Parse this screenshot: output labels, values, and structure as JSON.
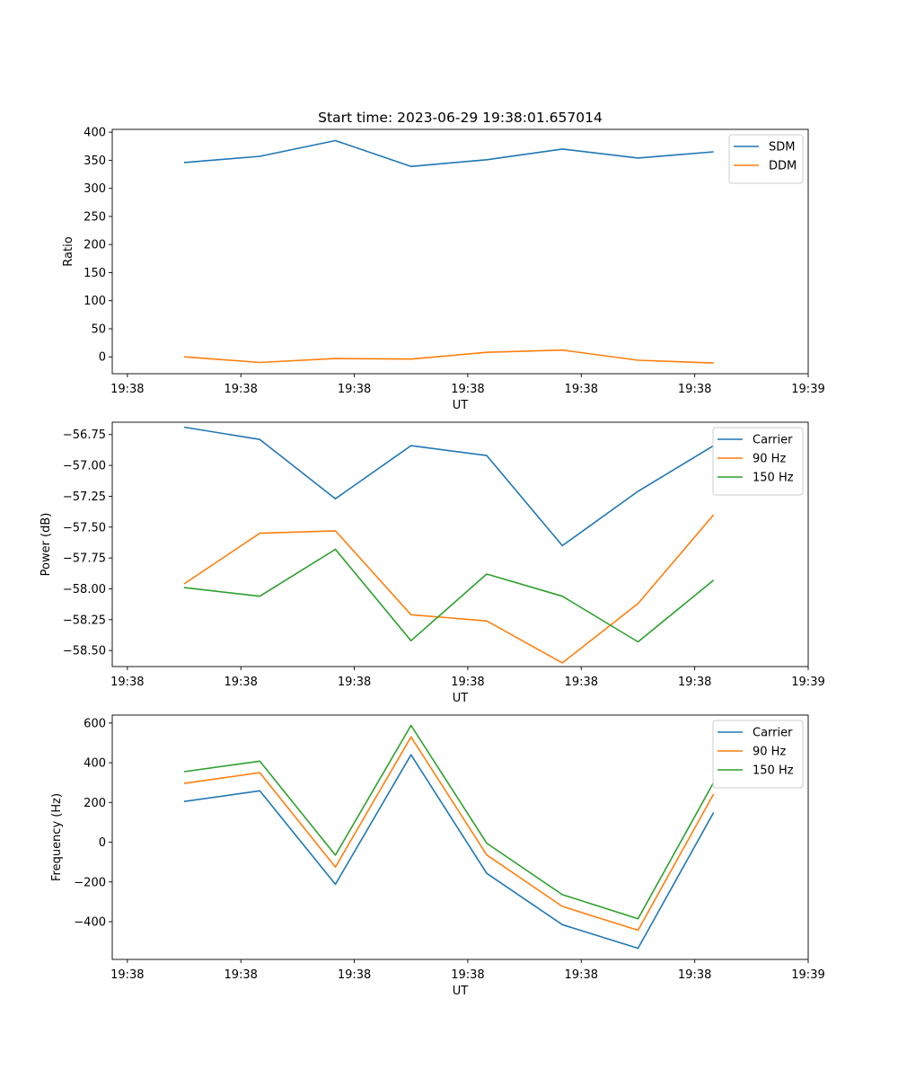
{
  "suptitle": "Start time: 2023-06-29 19:38:01.657014",
  "chart_data": [
    {
      "type": "line",
      "title": "Start time: 2023-06-29 19:38:01.657014",
      "xlabel": "UT",
      "ylabel": "Ratio",
      "xlim": [
        -0.2,
        9.0
      ],
      "ylim": [
        -30,
        405
      ],
      "x": [
        0.75,
        1.75,
        2.75,
        3.75,
        4.75,
        5.75,
        6.75,
        7.75
      ],
      "x_ticks": [
        0,
        1.5,
        3,
        4.5,
        6,
        7.5,
        9
      ],
      "x_tick_labels": [
        "19:38",
        "19:38",
        "19:38",
        "19:38",
        "19:38",
        "19:38",
        "19:39"
      ],
      "y_ticks": [
        0,
        50,
        100,
        150,
        200,
        250,
        300,
        350,
        400
      ],
      "y_tick_labels": [
        "0",
        "50",
        "100",
        "150",
        "200",
        "250",
        "300",
        "350",
        "400"
      ],
      "legend": "top-right",
      "series": [
        {
          "name": "SDM",
          "color": "#1f77b4",
          "values": [
            346,
            357,
            385,
            339,
            351,
            370,
            354,
            365
          ]
        },
        {
          "name": "DDM",
          "color": "#ff7f0e",
          "values": [
            0,
            -10,
            -3,
            -4,
            8,
            12,
            -6,
            -11
          ]
        }
      ]
    },
    {
      "type": "line",
      "xlabel": "UT",
      "ylabel": "Power (dB)",
      "xlim": [
        -0.2,
        9.0
      ],
      "ylim": [
        -58.63,
        -56.65
      ],
      "x": [
        0.75,
        1.75,
        2.75,
        3.75,
        4.75,
        5.75,
        6.75,
        7.75
      ],
      "x_ticks": [
        0,
        1.5,
        3,
        4.5,
        6,
        7.5,
        9
      ],
      "x_tick_labels": [
        "19:38",
        "19:38",
        "19:38",
        "19:38",
        "19:38",
        "19:38",
        "19:39"
      ],
      "y_ticks": [
        -58.5,
        -58.25,
        -58.0,
        -57.75,
        -57.5,
        -57.25,
        -57.0,
        -56.75
      ],
      "y_tick_labels": [
        "−58.50",
        "−58.25",
        "−58.00",
        "−57.75",
        "−57.50",
        "−57.25",
        "−57.00",
        "−56.75"
      ],
      "legend": "top-right",
      "series": [
        {
          "name": "Carrier",
          "color": "#1f77b4",
          "values": [
            -56.69,
            -56.79,
            -57.27,
            -56.84,
            -56.92,
            -57.65,
            -57.21,
            -56.84
          ]
        },
        {
          "name": "90 Hz",
          "color": "#ff7f0e",
          "values": [
            -57.96,
            -57.55,
            -57.53,
            -58.21,
            -58.26,
            -58.6,
            -58.12,
            -57.4
          ]
        },
        {
          "name": "150 Hz",
          "color": "#2ca02c",
          "values": [
            -57.99,
            -58.06,
            -57.68,
            -58.42,
            -57.88,
            -58.06,
            -58.43,
            -57.93
          ]
        }
      ]
    },
    {
      "type": "line",
      "xlabel": "UT",
      "ylabel": "Frequency (Hz)",
      "xlim": [
        -0.2,
        9.0
      ],
      "ylim": [
        -590,
        640
      ],
      "x": [
        0.75,
        1.75,
        2.75,
        3.75,
        4.75,
        5.75,
        6.75,
        7.75
      ],
      "x_ticks": [
        0,
        1.5,
        3,
        4.5,
        6,
        7.5,
        9
      ],
      "x_tick_labels": [
        "19:38",
        "19:38",
        "19:38",
        "19:38",
        "19:38",
        "19:38",
        "19:39"
      ],
      "y_ticks": [
        -400,
        -200,
        0,
        200,
        400,
        600
      ],
      "y_tick_labels": [
        "−400",
        "−200",
        "0",
        "200",
        "400",
        "600"
      ],
      "legend": "top-right",
      "series": [
        {
          "name": "Carrier",
          "color": "#1f77b4",
          "values": [
            205,
            259,
            -212,
            440,
            -157,
            -415,
            -534,
            150
          ]
        },
        {
          "name": "90 Hz",
          "color": "#ff7f0e",
          "values": [
            296,
            350,
            -125,
            530,
            -64,
            -323,
            -443,
            243
          ]
        },
        {
          "name": "150 Hz",
          "color": "#2ca02c",
          "values": [
            355,
            408,
            -65,
            588,
            -5,
            -264,
            -385,
            301
          ]
        }
      ]
    }
  ]
}
